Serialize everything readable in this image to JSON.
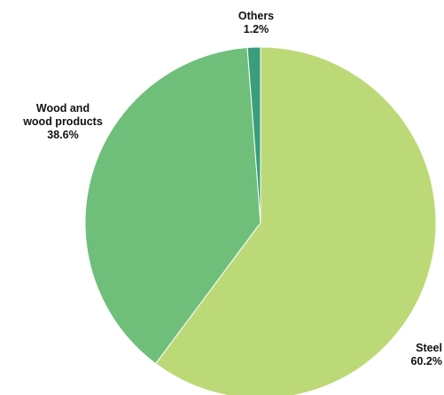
{
  "chart_data": {
    "type": "pie",
    "title": "",
    "start_angle_deg": 0,
    "direction": "clockwise",
    "slices": [
      {
        "name_lines": [
          "Steel"
        ],
        "value": 60.2,
        "label": "60.2%",
        "color": "#bcd977"
      },
      {
        "name_lines": [
          "Wood and",
          "wood products"
        ],
        "value": 38.6,
        "label": "38.6%",
        "color": "#6fbf7a"
      },
      {
        "name_lines": [
          "Others"
        ],
        "value": 1.2,
        "label": "1.2%",
        "color": "#3a9e7c"
      }
    ]
  }
}
